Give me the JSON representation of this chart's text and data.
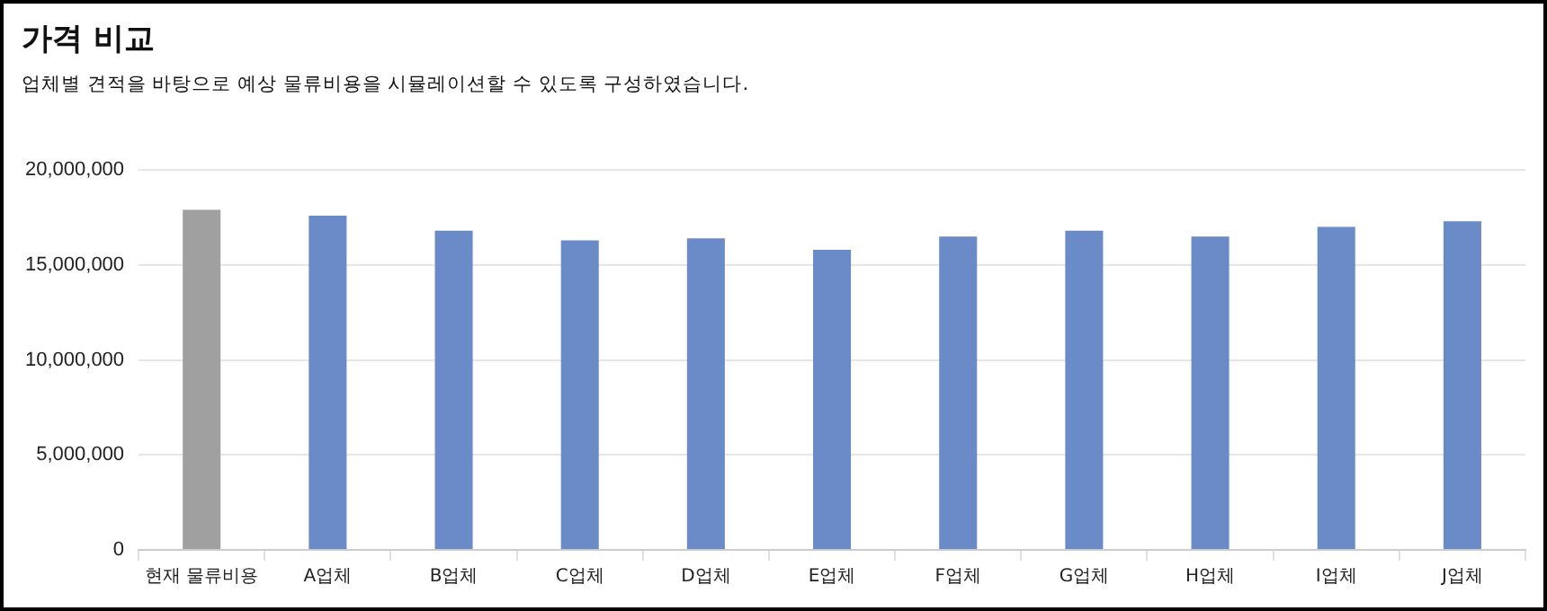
{
  "chart_data": {
    "type": "bar",
    "title": "가격 비교",
    "subtitle": "업체별 견적을 바탕으로 예상 물류비용을 시뮬레이션할 수 있도록 구성하였습니다.",
    "categories": [
      "현재 물류비용",
      "A업체",
      "B업체",
      "C업체",
      "D업체",
      "E업체",
      "F업체",
      "G업체",
      "H업체",
      "I업체",
      "J업체"
    ],
    "values": [
      17900000,
      17600000,
      16800000,
      16300000,
      16400000,
      15800000,
      16500000,
      16800000,
      16500000,
      17000000,
      17300000
    ],
    "colors": [
      "#a0a0a0",
      "#6a8bc8",
      "#6a8bc8",
      "#6a8bc8",
      "#6a8bc8",
      "#6a8bc8",
      "#6a8bc8",
      "#6a8bc8",
      "#6a8bc8",
      "#6a8bc8",
      "#6a8bc8"
    ],
    "ylim": [
      0,
      20000000
    ],
    "yticks": [
      0,
      {
        "value": 5000000,
        "label": "5,000,000"
      },
      {
        "value": 10000000,
        "label": "10,000,000"
      },
      {
        "value": 15000000,
        "label": "15,000,000"
      },
      {
        "value": 20000000,
        "label": "20,000,000"
      }
    ],
    "grid": "y",
    "legend": false
  }
}
